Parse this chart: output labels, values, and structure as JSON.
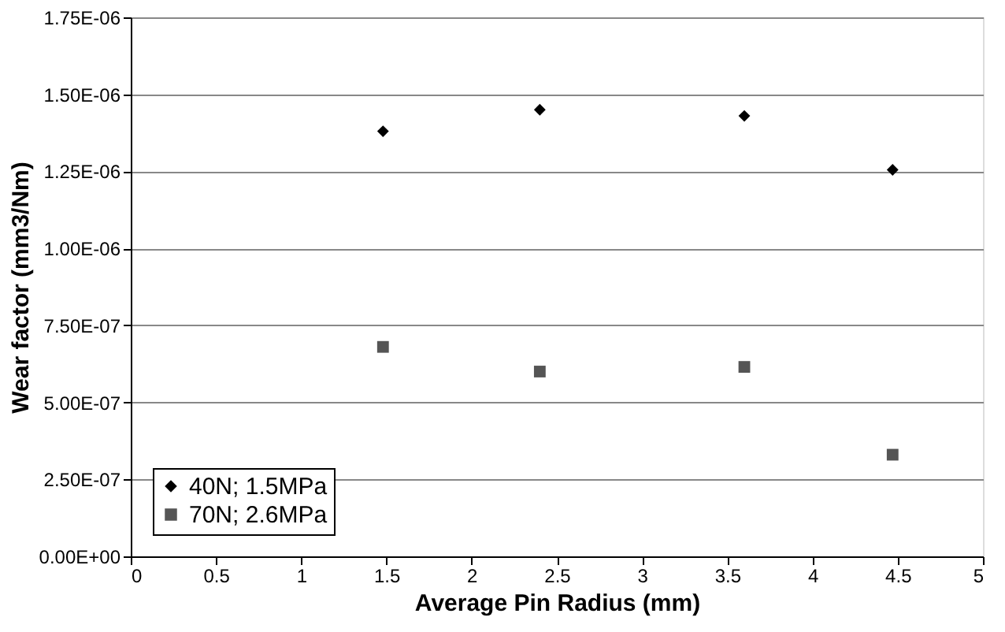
{
  "chart_data": {
    "type": "scatter",
    "xlabel": "Average Pin Radius (mm)",
    "ylabel": "Wear factor (mm3/Nm)",
    "x": [
      1.48,
      2.4,
      3.6,
      4.47
    ],
    "series": [
      {
        "name": "40N; 1.5MPa",
        "color": "#000000",
        "marker": "diamond",
        "values": [
          1.38e-06,
          1.45e-06,
          1.43e-06,
          1.255e-06
        ]
      },
      {
        "name": "70N; 2.6MPa",
        "color": "#555555",
        "marker": "square",
        "values": [
          6.8e-07,
          6e-07,
          6.15e-07,
          3.3e-07
        ]
      }
    ],
    "xlim": [
      0,
      5
    ],
    "xticks": [
      0,
      0.5,
      1,
      1.5,
      2,
      2.5,
      3,
      3.5,
      4,
      4.5,
      5
    ],
    "ylim": [
      0,
      1.75e-06
    ],
    "yticks": [
      {
        "value": 0,
        "label": "0.00E+00"
      },
      {
        "value": 2.5e-07,
        "label": "2.50E-07"
      },
      {
        "value": 5e-07,
        "label": "5.00E-07"
      },
      {
        "value": 7.5e-07,
        "label": "7.50E-07"
      },
      {
        "value": 1e-06,
        "label": "1.00E-06"
      },
      {
        "value": 1.25e-06,
        "label": "1.25E-06"
      },
      {
        "value": 1.5e-06,
        "label": "1.50E-06"
      },
      {
        "value": 1.75e-06,
        "label": "1.75E-06"
      }
    ],
    "grid": "y",
    "legend": "bottom left"
  }
}
